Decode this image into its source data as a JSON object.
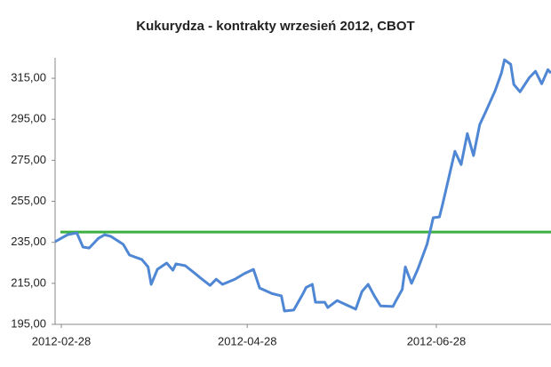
{
  "chart_data": {
    "type": "line",
    "title": "Kukurydza - kontrakty wrzesień 2012, CBOT",
    "x": [
      "2012-02-26",
      "2012-02-28",
      "2012-03-01",
      "2012-03-04",
      "2012-03-06",
      "2012-03-08",
      "2012-03-11",
      "2012-03-13",
      "2012-03-15",
      "2012-03-19",
      "2012-03-21",
      "2012-03-25",
      "2012-03-27",
      "2012-03-28",
      "2012-03-30",
      "2012-04-02",
      "2012-04-04",
      "2012-04-05",
      "2012-04-08",
      "2012-04-11",
      "2012-04-13",
      "2012-04-16",
      "2012-04-18",
      "2012-04-20",
      "2012-04-24",
      "2012-04-27",
      "2012-04-30",
      "2012-05-02",
      "2012-05-06",
      "2012-05-09",
      "2012-05-10",
      "2012-05-13",
      "2012-05-16",
      "2012-05-17",
      "2012-05-19",
      "2012-05-20",
      "2012-05-23",
      "2012-05-24",
      "2012-05-27",
      "2012-05-30",
      "2012-06-02",
      "2012-06-04",
      "2012-06-06",
      "2012-06-08",
      "2012-06-10",
      "2012-06-14",
      "2012-06-15",
      "2012-06-17",
      "2012-06-18",
      "2012-06-20",
      "2012-06-22",
      "2012-06-25",
      "2012-06-27",
      "2012-06-29",
      "2012-06-30",
      "2012-07-02",
      "2012-07-04",
      "2012-07-06",
      "2012-07-08",
      "2012-07-10",
      "2012-07-12",
      "2012-07-14",
      "2012-07-17",
      "2012-07-19",
      "2012-07-20",
      "2012-07-22",
      "2012-07-23",
      "2012-07-25",
      "2012-07-28",
      "2012-07-30",
      "2012-08-01",
      "2012-08-03",
      "2012-08-04"
    ],
    "values": [
      235.3,
      237,
      238.7,
      239.6,
      232.7,
      232.2,
      237,
      238.7,
      237.9,
      234,
      228.8,
      226.6,
      223,
      214.5,
      221.8,
      224.9,
      221.4,
      224.5,
      223.6,
      220,
      217.5,
      214,
      217,
      214.5,
      217,
      219.7,
      221.8,
      212.7,
      210,
      208.9,
      201.5,
      202,
      210,
      213,
      214.5,
      205.8,
      205.8,
      203.2,
      206.6,
      204.5,
      202.4,
      211,
      214.5,
      208.9,
      204,
      203.7,
      206.6,
      212,
      223,
      215,
      221.8,
      234,
      247,
      247.4,
      253.4,
      266.4,
      279.4,
      272.9,
      288,
      277.3,
      292.4,
      298.9,
      309,
      317.5,
      324,
      321.8,
      312,
      308.4,
      315.3,
      318.4,
      312.3,
      319.2,
      317.5
    ],
    "color": "#4f87d4",
    "hline": {
      "value": 240,
      "color": "#3cb043"
    },
    "xlim": [
      "2012-02-26",
      "2012-08-04"
    ],
    "xticks": [
      "2012-02-28",
      "2012-04-28",
      "2012-06-28"
    ],
    "ylim": [
      195,
      325
    ],
    "yticks": [
      {
        "value": 195,
        "label": "195,00"
      },
      {
        "value": 215,
        "label": "215,00"
      },
      {
        "value": 235,
        "label": "235,00"
      },
      {
        "value": 255,
        "label": "255,00"
      },
      {
        "value": 275,
        "label": "275,00"
      },
      {
        "value": 295,
        "label": "295,00"
      },
      {
        "value": 315,
        "label": "315,00"
      }
    ]
  }
}
